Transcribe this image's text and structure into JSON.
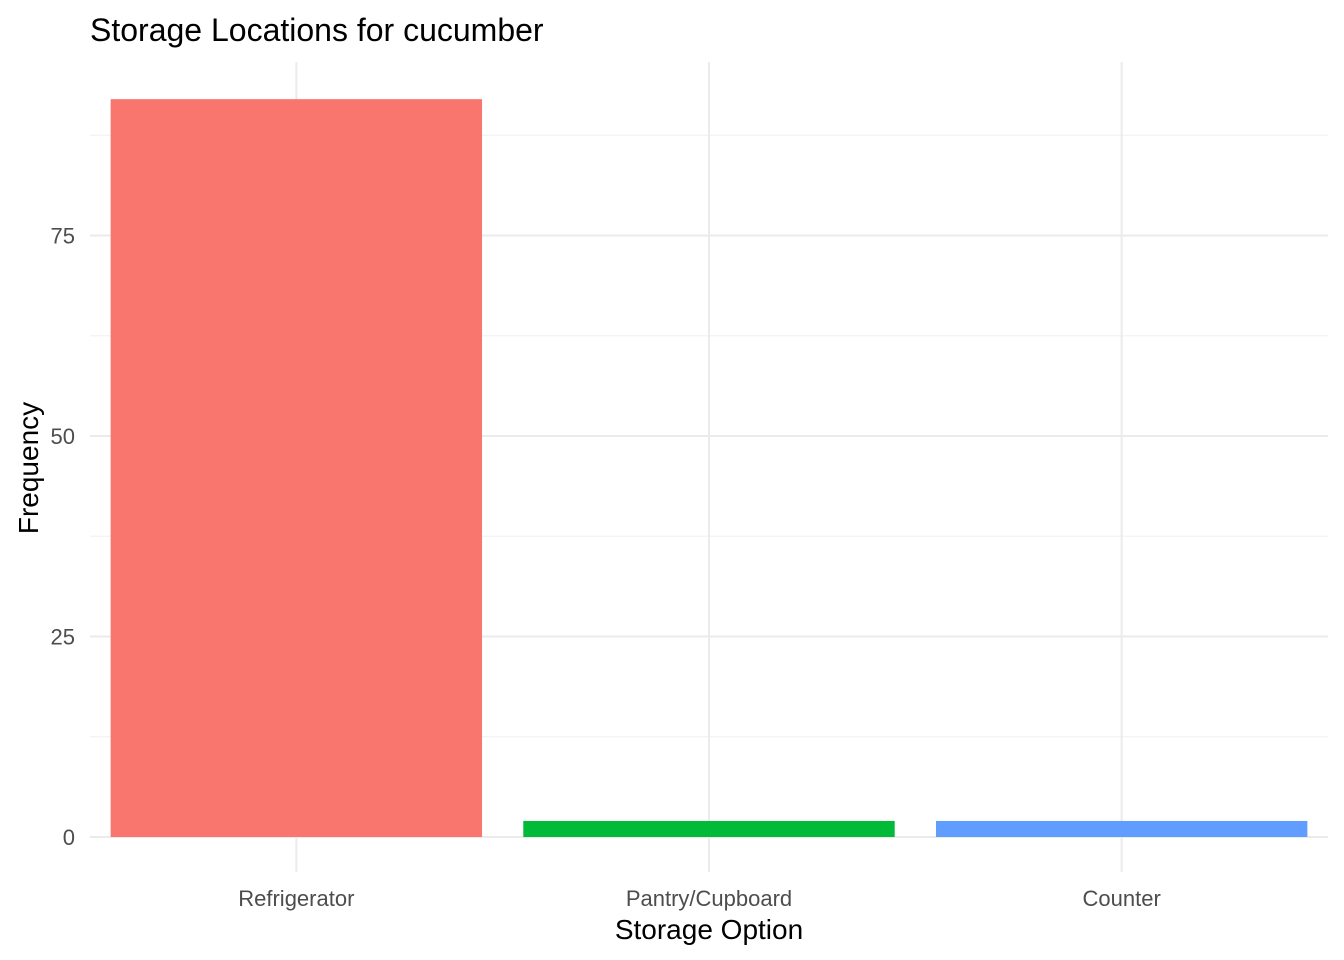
{
  "chart_data": {
    "type": "bar",
    "title": "Storage Locations for cucumber",
    "xlabel": "Storage Option",
    "ylabel": "Frequency",
    "categories": [
      "Refrigerator",
      "Pantry/Cupboard",
      "Counter"
    ],
    "values": [
      92,
      2,
      2
    ],
    "colors": [
      "#F8766D",
      "#00BA38",
      "#619CFF"
    ],
    "ylim": [
      0,
      97
    ],
    "yticks": [
      0,
      25,
      50,
      75
    ],
    "ytick_labels": [
      "0",
      "25",
      "50",
      "75"
    ],
    "grid": true,
    "legend": "none"
  }
}
